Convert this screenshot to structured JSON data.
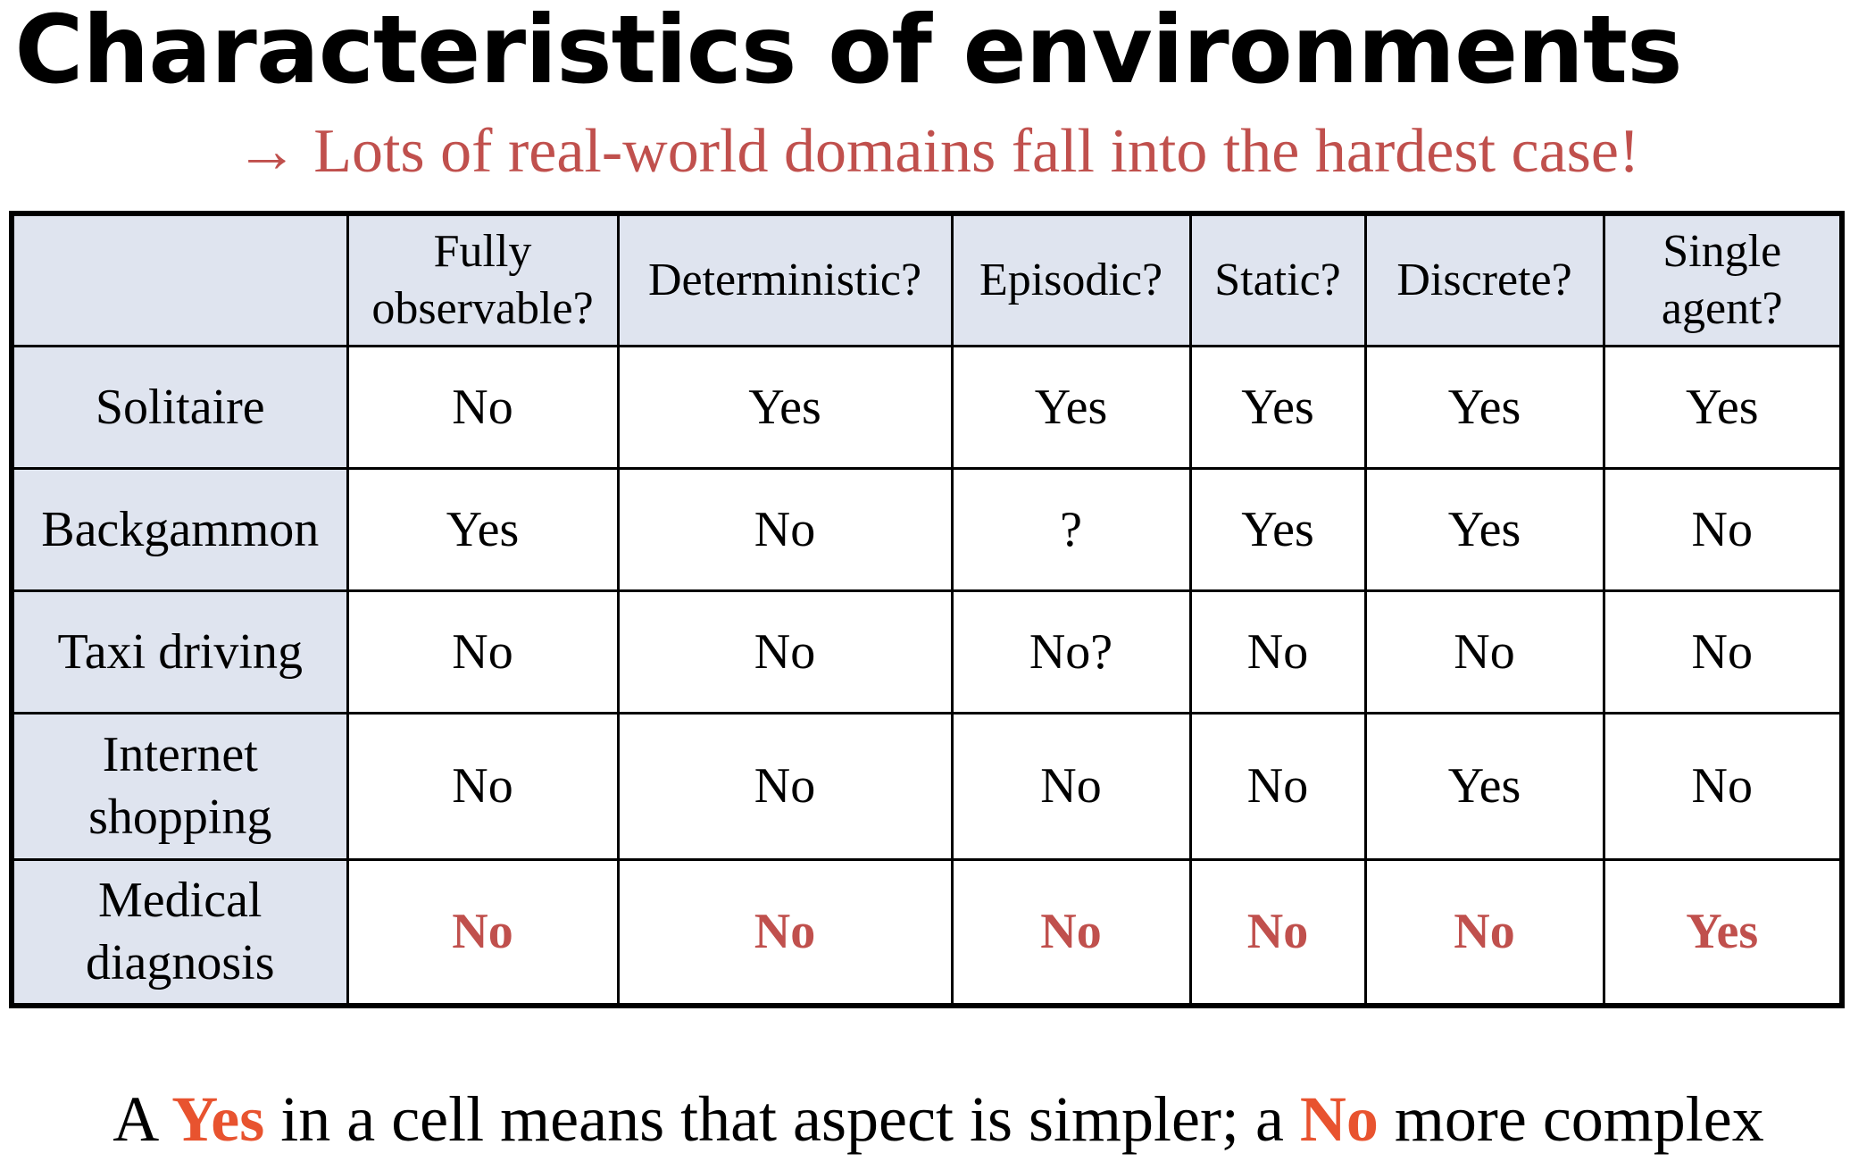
{
  "title": "Characteristics of environments",
  "subtitle": "→ Lots of real-world domains fall into the hardest case!",
  "table": {
    "corner": "",
    "headers": [
      {
        "line1": "Fully",
        "line2": "observable?"
      },
      {
        "line1": "Deterministic?",
        "line2": ""
      },
      {
        "line1": "Episodic?",
        "line2": ""
      },
      {
        "line1": "Static?",
        "line2": ""
      },
      {
        "line1": "Discrete?",
        "line2": ""
      },
      {
        "line1": "Single",
        "line2": "agent?"
      }
    ],
    "rows": [
      {
        "label1": "Solitaire",
        "label2": "",
        "values": [
          "No",
          "Yes",
          "Yes",
          "Yes",
          "Yes",
          "Yes"
        ]
      },
      {
        "label1": "Backgammon",
        "label2": "",
        "values": [
          "Yes",
          "No",
          "?",
          "Yes",
          "Yes",
          "No"
        ]
      },
      {
        "label1": "Taxi driving",
        "label2": "",
        "values": [
          "No",
          "No",
          "No?",
          "No",
          "No",
          "No"
        ]
      },
      {
        "label1": "Internet",
        "label2": "shopping",
        "values": [
          "No",
          "No",
          "No",
          "No",
          "Yes",
          "No"
        ]
      },
      {
        "label1": "Medical",
        "label2": "diagnosis",
        "values": [
          "No",
          "No",
          "No",
          "No",
          "No",
          "Yes"
        ],
        "highlight": true
      }
    ]
  },
  "footer": {
    "part1": "A ",
    "yes": "Yes",
    "part2": " in a cell means that aspect is simpler; a ",
    "no": "No",
    "part3": " more complex"
  },
  "colors": {
    "accent_red": "#c0504d",
    "footer_keyword": "#e8532f",
    "header_fill": "#dfe4ef"
  }
}
